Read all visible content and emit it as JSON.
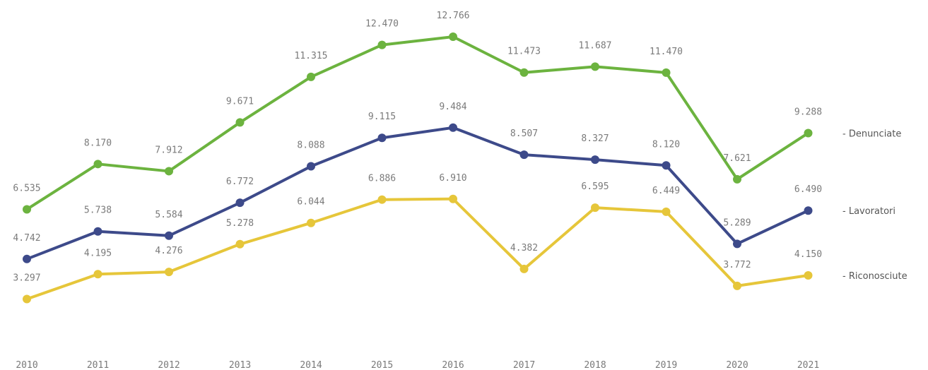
{
  "chart_data": {
    "type": "line",
    "title": "",
    "xlabel": "",
    "ylabel": "",
    "x": [
      "2010",
      "2011",
      "2012",
      "2013",
      "2014",
      "2015",
      "2016",
      "2017",
      "2018",
      "2019",
      "2020",
      "2021"
    ],
    "ylim": [
      0,
      14000
    ],
    "grid": false,
    "legend_placement": "right",
    "series": [
      {
        "name": "- Denunciate",
        "color": "#6cb33f",
        "values": [
          6535,
          8170,
          7912,
          9671,
          11315,
          12470,
          12766,
          11473,
          11687,
          11470,
          7621,
          9288
        ],
        "labels": [
          "6.535",
          "8.170",
          "7.912",
          "9.671",
          "11.315",
          "12.470",
          "12.766",
          "11.473",
          "11.687",
          "11.470",
          "7.621",
          "9.288"
        ]
      },
      {
        "name": "- Lavoratori",
        "color": "#3d4a8a",
        "values": [
          4742,
          5738,
          5584,
          6772,
          8088,
          9115,
          9484,
          8507,
          8327,
          8120,
          5289,
          6490
        ],
        "labels": [
          "4.742",
          "5.738",
          "5.584",
          "6.772",
          "8.088",
          "9.115",
          "9.484",
          "8.507",
          "8.327",
          "8.120",
          "5.289",
          "6.490"
        ]
      },
      {
        "name": "- Riconosciute",
        "color": "#e6c63a",
        "values": [
          3297,
          4195,
          4276,
          5278,
          6044,
          6886,
          6910,
          4382,
          6595,
          6449,
          3772,
          4150
        ],
        "labels": [
          "3.297",
          "4.195",
          "4.276",
          "5.278",
          "6.044",
          "6.886",
          "6.910",
          "4.382",
          "6.595",
          "6.449",
          "3.772",
          "4.150"
        ]
      }
    ]
  }
}
